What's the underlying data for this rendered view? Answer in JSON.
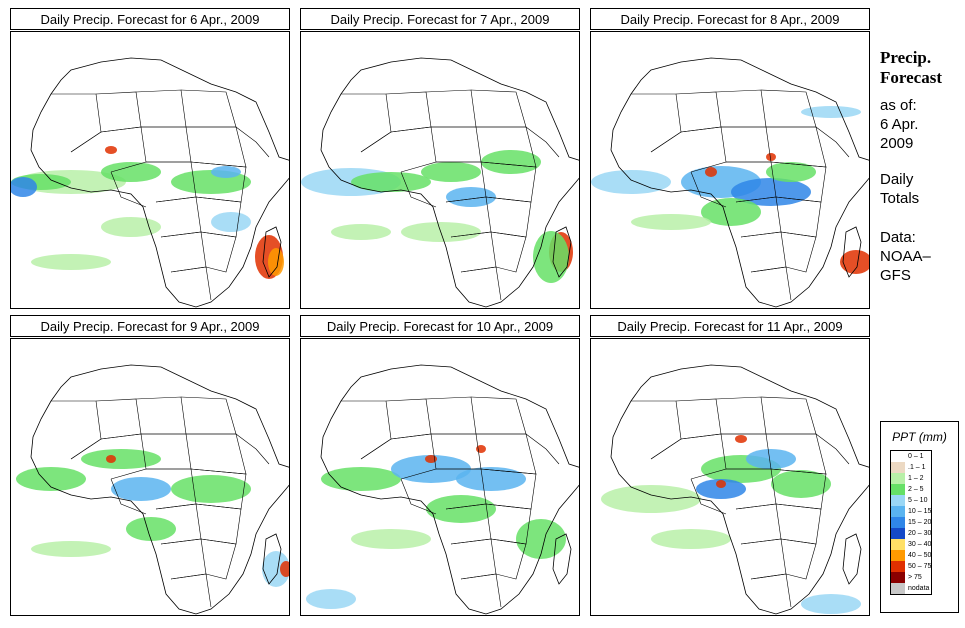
{
  "panels": [
    {
      "title": "Daily Precip. Forecast for  6 Apr., 2009"
    },
    {
      "title": "Daily Precip. Forecast for  7 Apr., 2009"
    },
    {
      "title": "Daily Precip. Forecast for  8 Apr., 2009"
    },
    {
      "title": "Daily Precip. Forecast for  9 Apr., 2009"
    },
    {
      "title": "Daily Precip. Forecast for  10 Apr., 2009"
    },
    {
      "title": "Daily Precip. Forecast for  11 Apr., 2009"
    }
  ],
  "sidebar": {
    "line1": "Precip.",
    "line2": "Forecast",
    "line3": "as of:",
    "line4": "6 Apr.",
    "line5": "2009",
    "line6": "Daily",
    "line7": "Totals",
    "line8": "Data:",
    "line9": "NOAA–",
    "line10": "GFS"
  },
  "legend": {
    "title": "PPT (mm)",
    "items": [
      {
        "label": "0 – 1",
        "color": "#ffffff"
      },
      {
        "label": ".1 – 1",
        "color": "#ecd9c3"
      },
      {
        "label": "1 – 2",
        "color": "#b8f0a8"
      },
      {
        "label": "2 – 5",
        "color": "#66e066"
      },
      {
        "label": "5 – 10",
        "color": "#9ad7f5"
      },
      {
        "label": "10 – 15",
        "color": "#5ab4f0"
      },
      {
        "label": "15 – 20",
        "color": "#2f86e8"
      },
      {
        "label": "20 – 30",
        "color": "#1449c8"
      },
      {
        "label": "30 – 40",
        "color": "#ffe066"
      },
      {
        "label": "40 – 50",
        "color": "#ff9a00"
      },
      {
        "label": "50 – 75",
        "color": "#e03000"
      },
      {
        "label": "> 75",
        "color": "#8a0000"
      },
      {
        "label": "nodata",
        "color": "#c8c8c8"
      }
    ]
  }
}
